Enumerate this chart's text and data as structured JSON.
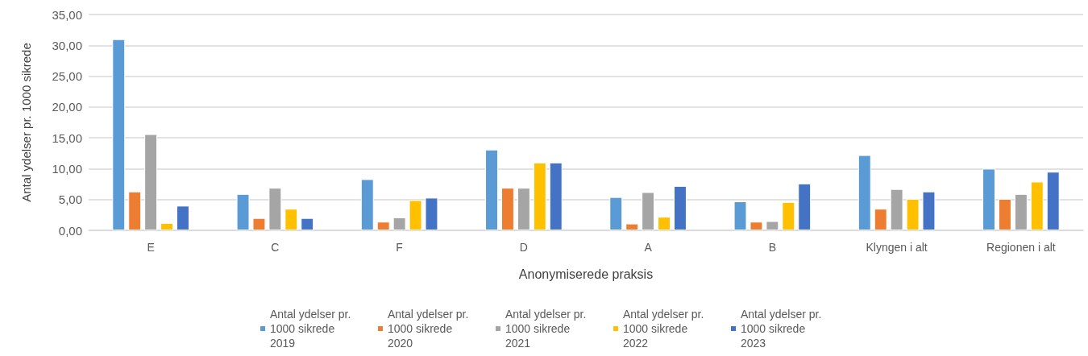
{
  "chart_data": {
    "type": "bar",
    "xlabel": "Anonymiserede praksis",
    "ylabel": "Antal ydelser pr. 1000 sikrede",
    "categories": [
      "E",
      "C",
      "F",
      "D",
      "A",
      "B",
      "Klyngen i alt",
      "Regionen i alt"
    ],
    "series": [
      {
        "name": "Antal ydelser pr. 1000 sikrede 2019",
        "color": "#5b9bd5",
        "values": [
          31.0,
          5.9,
          8.3,
          13.1,
          5.4,
          4.7,
          12.2,
          10.0
        ]
      },
      {
        "name": "Antal ydelser pr. 1000 sikrede 2020",
        "color": "#ed7d31",
        "values": [
          6.3,
          2.0,
          1.4,
          6.9,
          1.1,
          1.4,
          3.5,
          5.1
        ]
      },
      {
        "name": "Antal ydelser pr. 1000 sikrede 2021",
        "color": "#a5a5a5",
        "values": [
          15.6,
          6.9,
          2.1,
          6.9,
          6.2,
          1.5,
          6.7,
          5.9
        ]
      },
      {
        "name": "Antal ydelser pr. 1000 sikrede 2022",
        "color": "#ffc000",
        "values": [
          1.2,
          3.5,
          4.9,
          11.0,
          2.2,
          4.6,
          5.1,
          7.9
        ]
      },
      {
        "name": "Antal ydelser pr. 1000 sikrede 2023",
        "color": "#4472c4",
        "values": [
          4.0,
          2.0,
          5.3,
          11.0,
          7.2,
          7.6,
          6.3,
          9.5
        ]
      }
    ],
    "ylim": [
      0,
      35
    ],
    "yticks": [
      {
        "value": 0,
        "label": "0,00"
      },
      {
        "value": 5,
        "label": "5,00"
      },
      {
        "value": 10,
        "label": "10,00"
      },
      {
        "value": 15,
        "label": "15,00"
      },
      {
        "value": 20,
        "label": "20,00"
      },
      {
        "value": 25,
        "label": "25,00"
      },
      {
        "value": 30,
        "label": "30,00"
      },
      {
        "value": 35,
        "label": "35,00"
      }
    ],
    "grid": "y",
    "legend": "bottom"
  }
}
